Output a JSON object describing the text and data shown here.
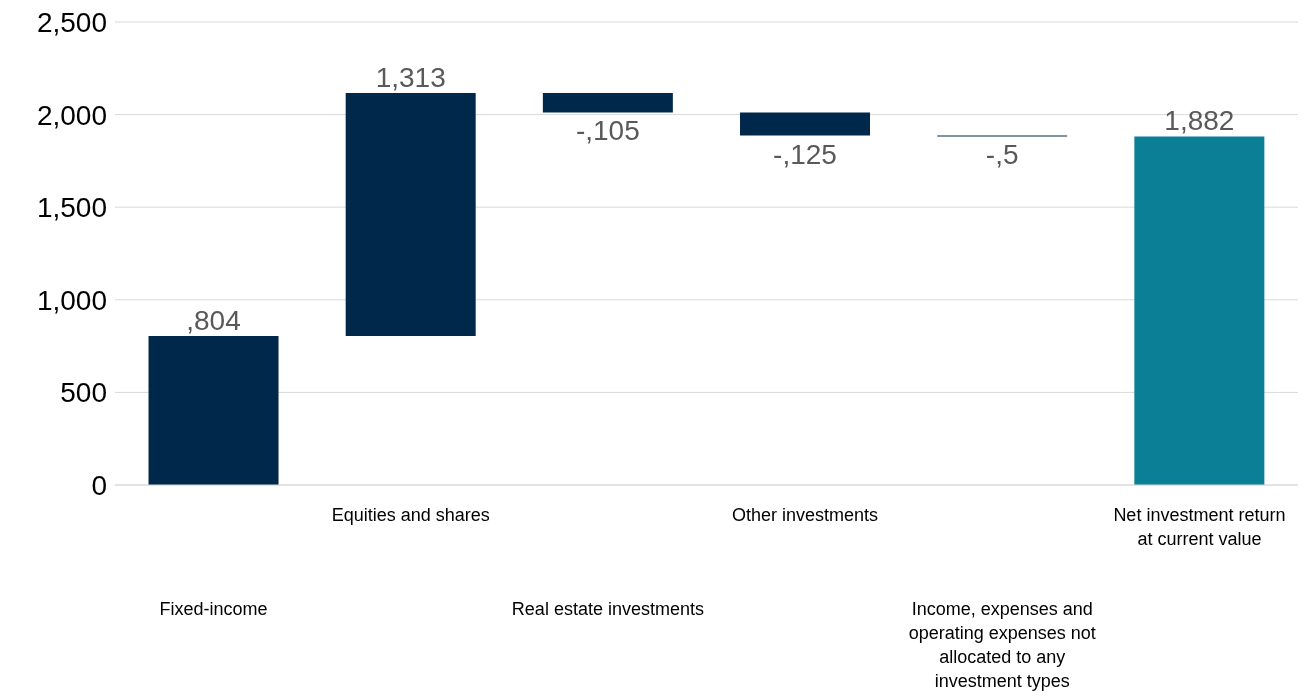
{
  "chart_data": {
    "type": "bar",
    "categories": [
      "Fixed-income",
      "Equities and shares",
      "Real estate investments",
      "Other investments",
      "Income, expenses and operating expenses not allocated to any investment types",
      "Net investment return at current value"
    ],
    "values": [
      804,
      1313,
      -105,
      -125,
      -5,
      1882
    ],
    "base": [
      0,
      804,
      2117,
      2012,
      1887,
      0
    ],
    "colors": [
      "#00284b",
      "#00284b",
      "#00284b",
      "#00284b",
      "#00284b",
      "#0a7f96"
    ],
    "value_labels": [
      ",804",
      "1,313",
      "-,105",
      "-,125",
      "-,5",
      "1,882"
    ],
    "ylim": [
      0,
      2500
    ],
    "yticks": [
      0,
      500,
      {
        "value": 1000,
        "label": "1,000"
      },
      {
        "value": 1500,
        "label": "1,500"
      },
      {
        "value": 2000,
        "label": "2,000"
      },
      {
        "value": 2500,
        "label": "2,500"
      }
    ],
    "grid": "y"
  }
}
